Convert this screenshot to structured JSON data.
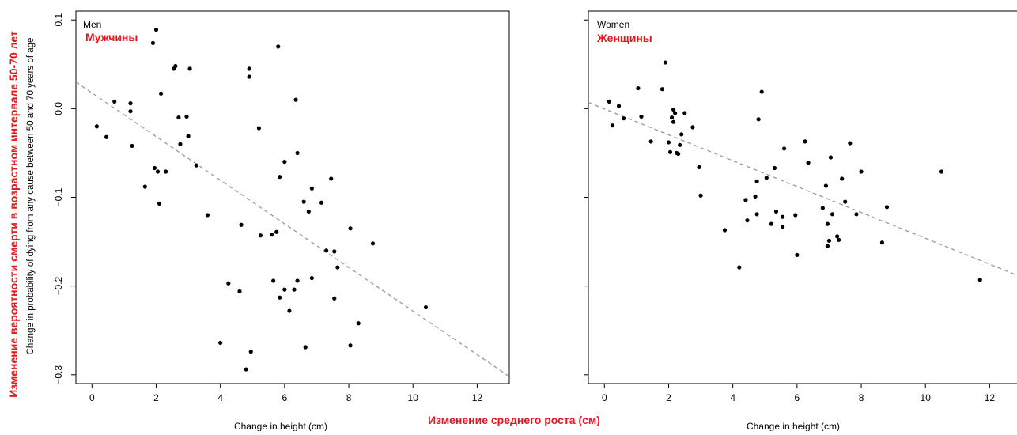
{
  "y_label_ru": "Изменение вероятности смерти в возрастном интервале 50-70 лет",
  "y_label_en": "Change in probability of dying from any cause between 50 and 70 years of age",
  "x_label_ru": "Изменение среднего роста (см)",
  "colors": {
    "points": "#000000",
    "trend": "#9a9a9a",
    "russian_labels": "#e8161a",
    "frame": "#000000"
  },
  "chart_data": [
    {
      "type": "scatter",
      "title": "Men",
      "title_ru": "Мужчины",
      "xlabel": "Change in height (cm)",
      "ylabel": "Change in probability of dying from any cause between 50 and 70 years of age",
      "xlim": [
        -0.5,
        13
      ],
      "ylim": [
        -0.31,
        0.11
      ],
      "x_ticks": [
        0,
        2,
        4,
        6,
        8,
        10,
        12
      ],
      "y_ticks": [
        -0.3,
        -0.2,
        -0.1,
        0.0,
        0.1
      ],
      "x_tick_labels": [
        "0",
        "2",
        "4",
        "6",
        "8",
        "10",
        "12"
      ],
      "y_tick_labels": [
        "−0.3",
        "−0.2",
        "−0.1",
        "0.0",
        "0.1"
      ],
      "grid": false,
      "trend_line": {
        "x": [
          -0.5,
          13
        ],
        "y": [
          0.03,
          -0.302
        ],
        "style": "dashed"
      },
      "points": [
        {
          "x": 0.15,
          "y": -0.02
        },
        {
          "x": 0.45,
          "y": -0.032
        },
        {
          "x": 0.7,
          "y": 0.008
        },
        {
          "x": 1.2,
          "y": 0.006
        },
        {
          "x": 1.2,
          "y": -0.003
        },
        {
          "x": 1.25,
          "y": -0.042
        },
        {
          "x": 1.65,
          "y": -0.088
        },
        {
          "x": 1.9,
          "y": 0.074
        },
        {
          "x": 1.95,
          "y": -0.067
        },
        {
          "x": 2.0,
          "y": 0.089
        },
        {
          "x": 2.05,
          "y": -0.071
        },
        {
          "x": 2.1,
          "y": -0.107
        },
        {
          "x": 2.15,
          "y": 0.017
        },
        {
          "x": 2.3,
          "y": -0.071
        },
        {
          "x": 2.55,
          "y": 0.045
        },
        {
          "x": 2.6,
          "y": 0.048
        },
        {
          "x": 2.7,
          "y": -0.01
        },
        {
          "x": 2.75,
          "y": -0.04
        },
        {
          "x": 2.95,
          "y": -0.009
        },
        {
          "x": 3.0,
          "y": -0.031
        },
        {
          "x": 3.05,
          "y": 0.045
        },
        {
          "x": 3.25,
          "y": -0.064
        },
        {
          "x": 3.6,
          "y": -0.12
        },
        {
          "x": 4.0,
          "y": -0.264
        },
        {
          "x": 4.25,
          "y": -0.197
        },
        {
          "x": 4.6,
          "y": -0.206
        },
        {
          "x": 4.65,
          "y": -0.131
        },
        {
          "x": 4.8,
          "y": -0.294
        },
        {
          "x": 4.9,
          "y": 0.045
        },
        {
          "x": 4.9,
          "y": 0.036
        },
        {
          "x": 4.95,
          "y": -0.274
        },
        {
          "x": 5.2,
          "y": -0.022
        },
        {
          "x": 5.25,
          "y": -0.143
        },
        {
          "x": 5.6,
          "y": -0.142
        },
        {
          "x": 5.65,
          "y": -0.194
        },
        {
          "x": 5.75,
          "y": -0.139
        },
        {
          "x": 5.8,
          "y": 0.07
        },
        {
          "x": 5.85,
          "y": -0.213
        },
        {
          "x": 5.85,
          "y": -0.077
        },
        {
          "x": 6.0,
          "y": -0.06
        },
        {
          "x": 6.0,
          "y": -0.204
        },
        {
          "x": 6.15,
          "y": -0.228
        },
        {
          "x": 6.3,
          "y": -0.204
        },
        {
          "x": 6.35,
          "y": 0.01
        },
        {
          "x": 6.4,
          "y": -0.05
        },
        {
          "x": 6.4,
          "y": -0.194
        },
        {
          "x": 6.6,
          "y": -0.105
        },
        {
          "x": 6.65,
          "y": -0.269
        },
        {
          "x": 6.75,
          "y": -0.116
        },
        {
          "x": 6.85,
          "y": -0.09
        },
        {
          "x": 6.85,
          "y": -0.191
        },
        {
          "x": 7.15,
          "y": -0.106
        },
        {
          "x": 7.3,
          "y": -0.16
        },
        {
          "x": 7.45,
          "y": -0.079
        },
        {
          "x": 7.55,
          "y": -0.161
        },
        {
          "x": 7.55,
          "y": -0.214
        },
        {
          "x": 7.65,
          "y": -0.179
        },
        {
          "x": 8.05,
          "y": -0.135
        },
        {
          "x": 8.05,
          "y": -0.267
        },
        {
          "x": 8.3,
          "y": -0.242
        },
        {
          "x": 8.75,
          "y": -0.152
        },
        {
          "x": 10.4,
          "y": -0.224
        }
      ]
    },
    {
      "type": "scatter",
      "title": "Women",
      "title_ru": "Женщины",
      "xlabel": "Change in height (cm)",
      "xlim": [
        -0.5,
        13
      ],
      "ylim": [
        -0.31,
        0.11
      ],
      "x_ticks": [
        0,
        2,
        4,
        6,
        8,
        10,
        12
      ],
      "y_ticks": [
        -0.3,
        -0.2,
        -0.1,
        0.0,
        0.1
      ],
      "x_tick_labels": [
        "0",
        "2",
        "4",
        "6",
        "8",
        "10",
        "12"
      ],
      "grid": false,
      "trend_line": {
        "x": [
          -0.5,
          13
        ],
        "y": [
          0.007,
          -0.19
        ],
        "style": "dashed"
      },
      "points": [
        {
          "x": 0.15,
          "y": 0.008
        },
        {
          "x": 0.25,
          "y": -0.019
        },
        {
          "x": 0.45,
          "y": 0.003
        },
        {
          "x": 0.6,
          "y": -0.011
        },
        {
          "x": 1.05,
          "y": 0.023
        },
        {
          "x": 1.15,
          "y": -0.009
        },
        {
          "x": 1.45,
          "y": -0.037
        },
        {
          "x": 1.8,
          "y": 0.022
        },
        {
          "x": 1.9,
          "y": 0.052
        },
        {
          "x": 2.0,
          "y": -0.038
        },
        {
          "x": 2.05,
          "y": -0.049
        },
        {
          "x": 2.1,
          "y": -0.01
        },
        {
          "x": 2.15,
          "y": -0.001
        },
        {
          "x": 2.15,
          "y": -0.015
        },
        {
          "x": 2.2,
          "y": -0.005
        },
        {
          "x": 2.25,
          "y": -0.05
        },
        {
          "x": 2.3,
          "y": -0.051
        },
        {
          "x": 2.35,
          "y": -0.041
        },
        {
          "x": 2.4,
          "y": -0.029
        },
        {
          "x": 2.5,
          "y": -0.005
        },
        {
          "x": 2.75,
          "y": -0.021
        },
        {
          "x": 2.95,
          "y": -0.066
        },
        {
          "x": 3.0,
          "y": -0.098
        },
        {
          "x": 3.75,
          "y": -0.137
        },
        {
          "x": 4.2,
          "y": -0.179
        },
        {
          "x": 4.4,
          "y": -0.103
        },
        {
          "x": 4.45,
          "y": -0.126
        },
        {
          "x": 4.7,
          "y": -0.099
        },
        {
          "x": 4.75,
          "y": -0.082
        },
        {
          "x": 4.75,
          "y": -0.119
        },
        {
          "x": 4.8,
          "y": -0.012
        },
        {
          "x": 4.9,
          "y": 0.019
        },
        {
          "x": 5.05,
          "y": -0.078
        },
        {
          "x": 5.2,
          "y": -0.13
        },
        {
          "x": 5.3,
          "y": -0.067
        },
        {
          "x": 5.35,
          "y": -0.116
        },
        {
          "x": 5.55,
          "y": -0.122
        },
        {
          "x": 5.55,
          "y": -0.133
        },
        {
          "x": 5.6,
          "y": -0.045
        },
        {
          "x": 5.95,
          "y": -0.12
        },
        {
          "x": 6.0,
          "y": -0.165
        },
        {
          "x": 6.25,
          "y": -0.037
        },
        {
          "x": 6.35,
          "y": -0.061
        },
        {
          "x": 6.8,
          "y": -0.112
        },
        {
          "x": 6.9,
          "y": -0.087
        },
        {
          "x": 6.95,
          "y": -0.13
        },
        {
          "x": 6.95,
          "y": -0.155
        },
        {
          "x": 7.0,
          "y": -0.149
        },
        {
          "x": 7.05,
          "y": -0.055
        },
        {
          "x": 7.1,
          "y": -0.119
        },
        {
          "x": 7.25,
          "y": -0.144
        },
        {
          "x": 7.3,
          "y": -0.148
        },
        {
          "x": 7.4,
          "y": -0.079
        },
        {
          "x": 7.5,
          "y": -0.105
        },
        {
          "x": 7.65,
          "y": -0.039
        },
        {
          "x": 7.85,
          "y": -0.119
        },
        {
          "x": 8.0,
          "y": -0.071
        },
        {
          "x": 8.65,
          "y": -0.151
        },
        {
          "x": 8.8,
          "y": -0.111
        },
        {
          "x": 10.5,
          "y": -0.071
        },
        {
          "x": 11.7,
          "y": -0.193
        }
      ]
    }
  ]
}
